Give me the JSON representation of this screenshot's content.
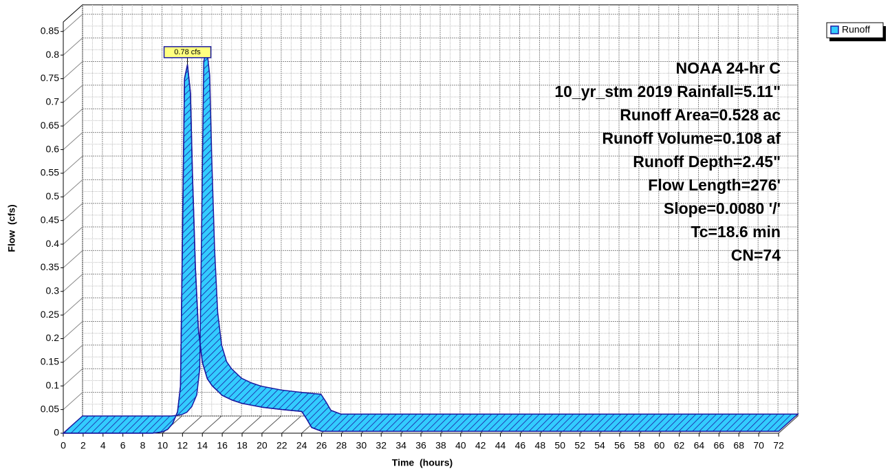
{
  "chart_data": {
    "type": "hydrograph",
    "series": [
      {
        "name": "Runoff",
        "color": "#33ccff",
        "x": [
          0,
          9,
          10,
          10.5,
          11,
          11.5,
          11.8,
          12,
          12.2,
          12.5,
          12.8,
          13,
          13.3,
          13.6,
          14,
          14.5,
          15,
          16,
          17,
          18,
          20,
          22,
          24,
          24.5,
          25,
          26,
          72
        ],
        "values": [
          0,
          0,
          0.003,
          0.008,
          0.02,
          0.045,
          0.1,
          0.42,
          0.75,
          0.78,
          0.72,
          0.55,
          0.35,
          0.22,
          0.15,
          0.115,
          0.1,
          0.08,
          0.07,
          0.063,
          0.055,
          0.05,
          0.046,
          0.03,
          0.012,
          0.004,
          0.004
        ],
        "value_labels": [
          null,
          null,
          null,
          null,
          null,
          null,
          null,
          null,
          null,
          "0.78 cfs",
          null,
          null,
          null,
          null,
          null,
          null,
          null,
          null,
          null,
          null,
          null,
          null,
          null,
          null,
          null,
          null,
          null
        ]
      }
    ],
    "xlabel": "Time  (hours)",
    "ylabel": "Flow  (cfs)",
    "xlim": [
      0,
      72
    ],
    "ylim": [
      0,
      0.87
    ],
    "xticks": [
      0,
      2,
      4,
      6,
      8,
      10,
      12,
      14,
      16,
      18,
      20,
      22,
      24,
      26,
      28,
      30,
      32,
      34,
      36,
      38,
      40,
      42,
      44,
      46,
      48,
      50,
      52,
      54,
      56,
      58,
      60,
      62,
      64,
      66,
      68,
      70,
      72
    ],
    "yticks": [
      0,
      0.05,
      0.1,
      0.15,
      0.2,
      0.25,
      0.3,
      0.35,
      0.4,
      0.45,
      0.5,
      0.55,
      0.6,
      0.65,
      0.7,
      0.75,
      0.8,
      0.85
    ],
    "annotations": [
      "NOAA 24-hr C",
      "10_yr_stm 2019 Rainfall=5.11\"",
      "Runoff Area=0.528 ac",
      "Runoff Volume=0.108 af",
      "Runoff Depth=2.45\"",
      "Flow Length=276'",
      "Slope=0.0080 '/'",
      "Tc=18.6 min",
      "CN=74"
    ],
    "grid": true,
    "legend": "top-right"
  }
}
